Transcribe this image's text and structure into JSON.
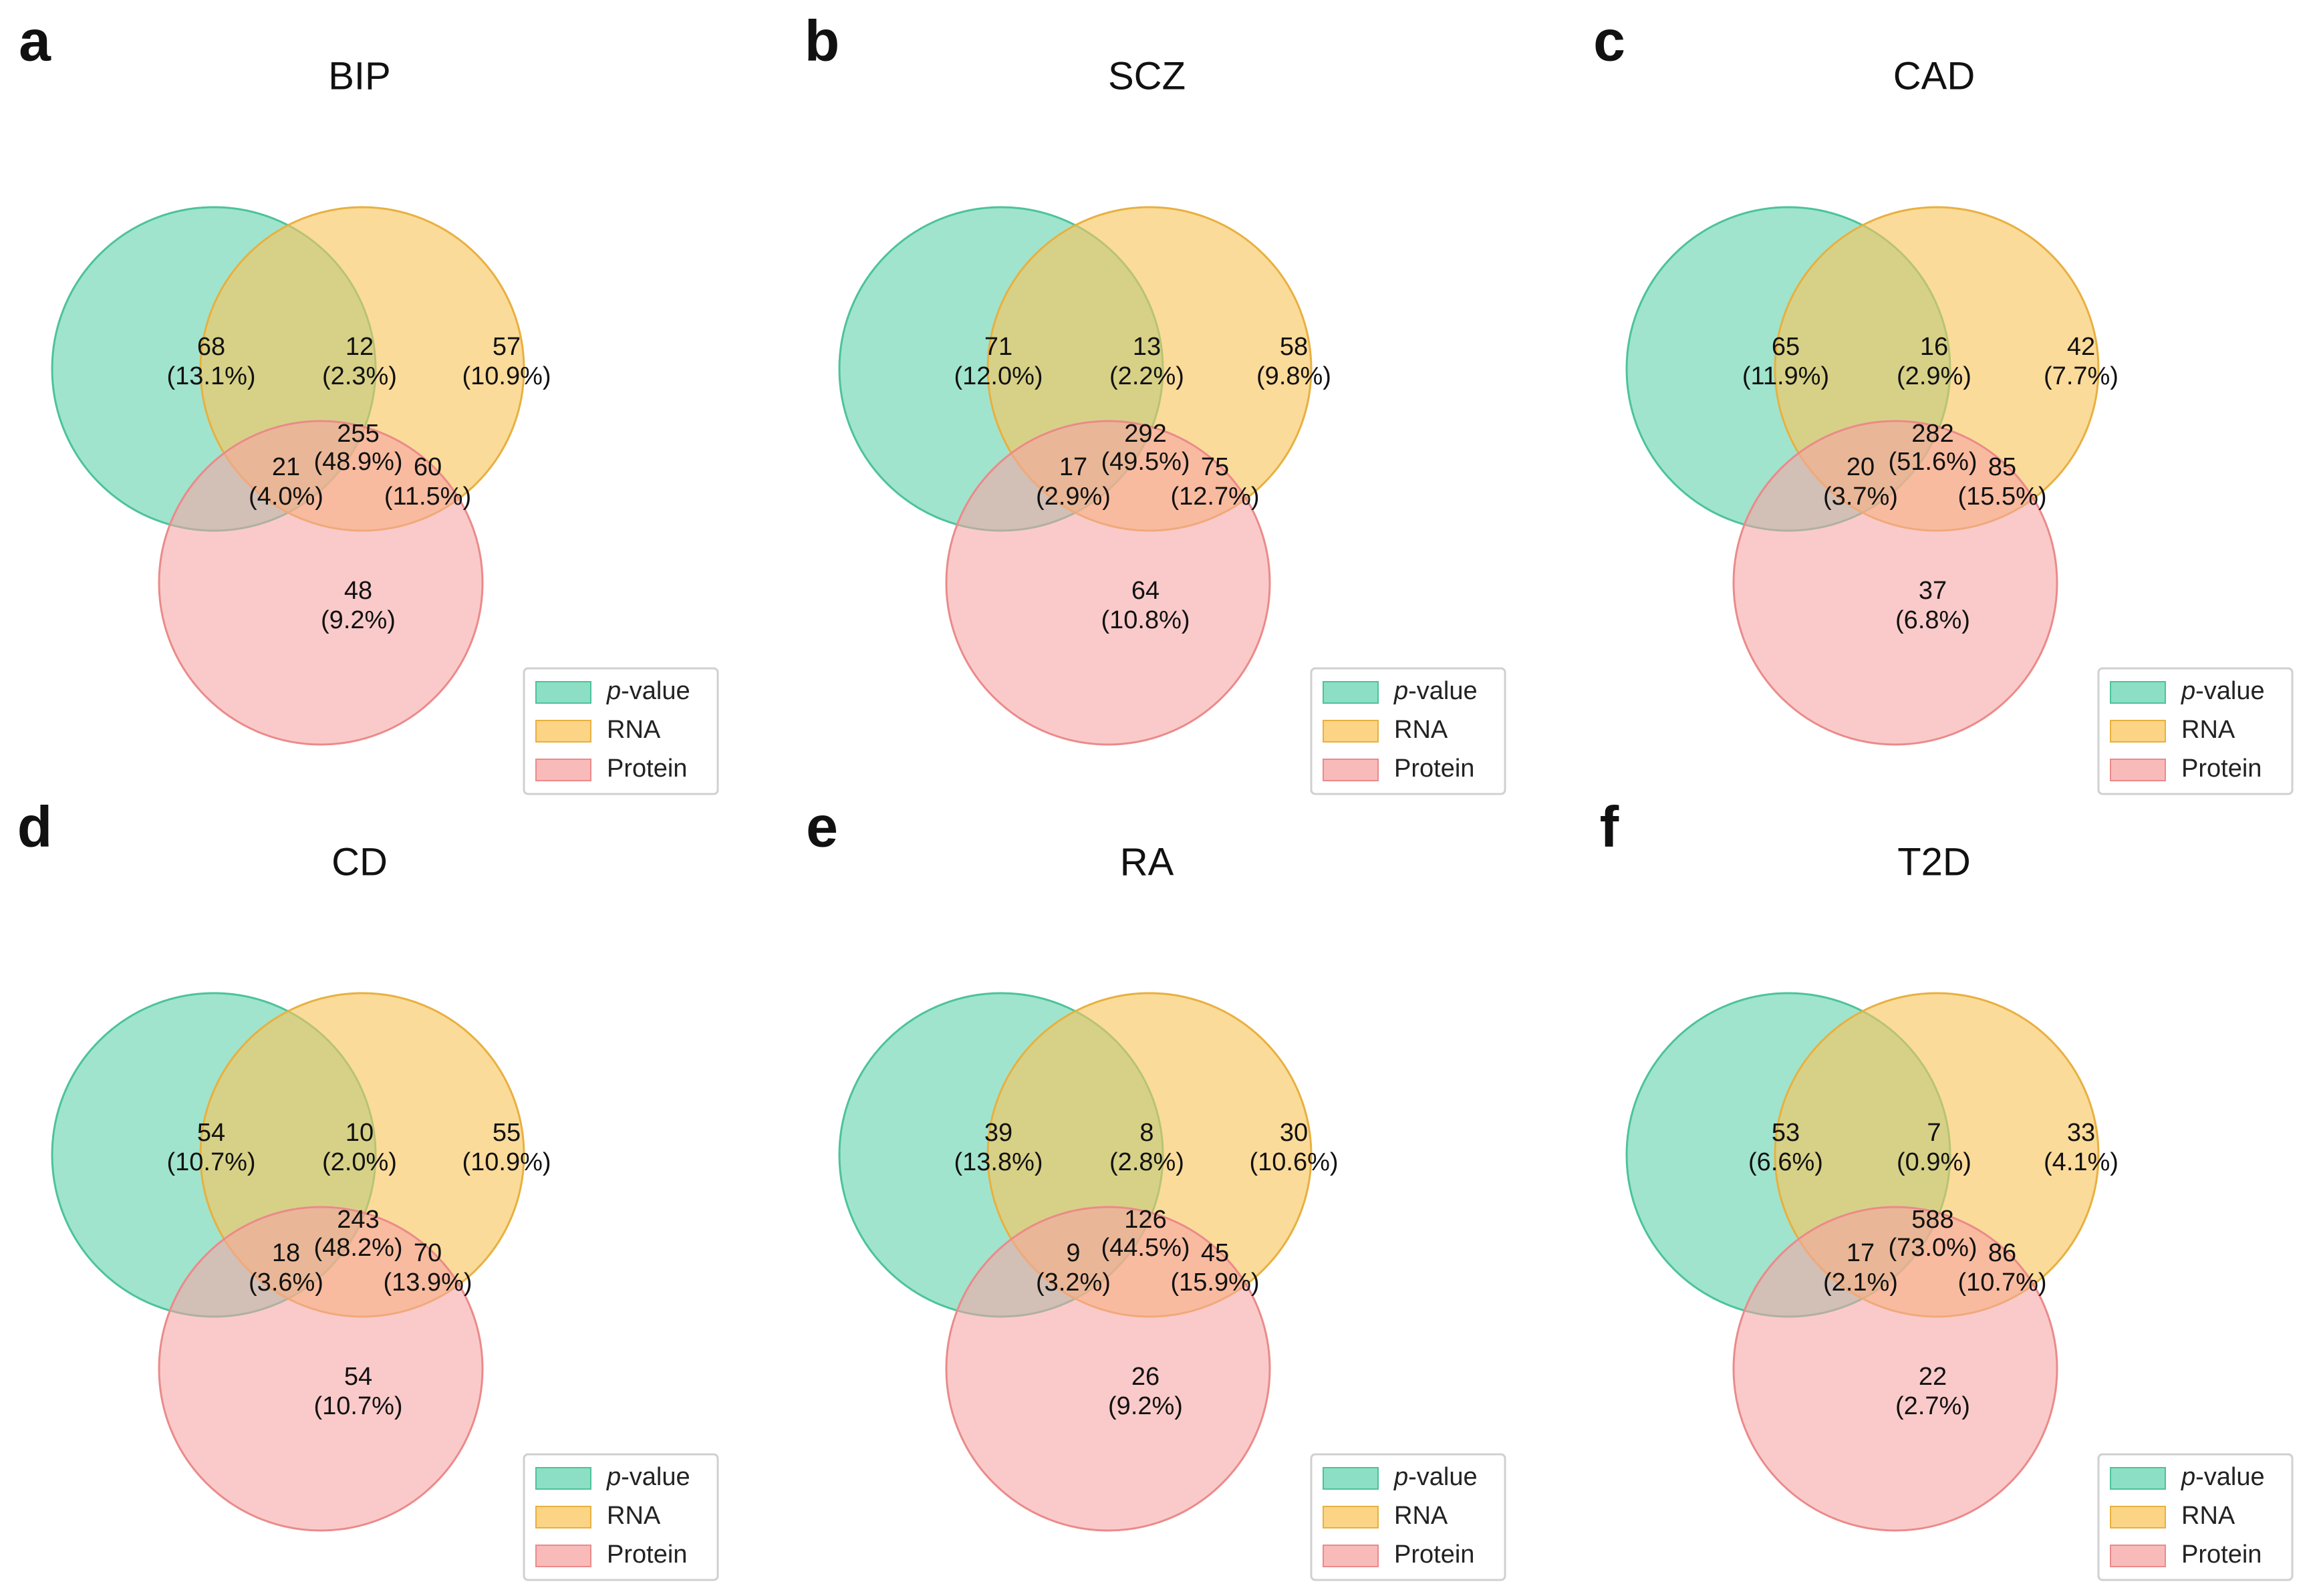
{
  "legend_labels": {
    "pvalue_italic": "p",
    "pvalue_rest": "-value",
    "rna": "RNA",
    "protein": "Protein"
  },
  "colors": {
    "pvalue_fill": "#66d4b0",
    "pvalue_stroke": "#4cc39a",
    "rna_fill": "#f9c55c",
    "rna_stroke": "#e8b040",
    "protein_fill": "#f7a3a3",
    "protein_stroke": "#eb8a8a"
  },
  "panels": [
    {
      "letter": "a",
      "title": "BIP",
      "regions": {
        "p_only": {
          "count": "68",
          "pct": "(13.1%)"
        },
        "rna_only": {
          "count": "57",
          "pct": "(10.9%)"
        },
        "protein_only": {
          "count": "48",
          "pct": "(9.2%)"
        },
        "p_rna": {
          "count": "12",
          "pct": "(2.3%)"
        },
        "p_protein": {
          "count": "21",
          "pct": "(4.0%)"
        },
        "rna_protein": {
          "count": "60",
          "pct": "(11.5%)"
        },
        "all": {
          "count": "255",
          "pct": "(48.9%)"
        }
      }
    },
    {
      "letter": "b",
      "title": "SCZ",
      "regions": {
        "p_only": {
          "count": "71",
          "pct": "(12.0%)"
        },
        "rna_only": {
          "count": "58",
          "pct": "(9.8%)"
        },
        "protein_only": {
          "count": "64",
          "pct": "(10.8%)"
        },
        "p_rna": {
          "count": "13",
          "pct": "(2.2%)"
        },
        "p_protein": {
          "count": "17",
          "pct": "(2.9%)"
        },
        "rna_protein": {
          "count": "75",
          "pct": "(12.7%)"
        },
        "all": {
          "count": "292",
          "pct": "(49.5%)"
        }
      }
    },
    {
      "letter": "c",
      "title": "CAD",
      "regions": {
        "p_only": {
          "count": "65",
          "pct": "(11.9%)"
        },
        "rna_only": {
          "count": "42",
          "pct": "(7.7%)"
        },
        "protein_only": {
          "count": "37",
          "pct": "(6.8%)"
        },
        "p_rna": {
          "count": "16",
          "pct": "(2.9%)"
        },
        "p_protein": {
          "count": "20",
          "pct": "(3.7%)"
        },
        "rna_protein": {
          "count": "85",
          "pct": "(15.5%)"
        },
        "all": {
          "count": "282",
          "pct": "(51.6%)"
        }
      }
    },
    {
      "letter": "d",
      "title": "CD",
      "regions": {
        "p_only": {
          "count": "54",
          "pct": "(10.7%)"
        },
        "rna_only": {
          "count": "55",
          "pct": "(10.9%)"
        },
        "protein_only": {
          "count": "54",
          "pct": "(10.7%)"
        },
        "p_rna": {
          "count": "10",
          "pct": "(2.0%)"
        },
        "p_protein": {
          "count": "18",
          "pct": "(3.6%)"
        },
        "rna_protein": {
          "count": "70",
          "pct": "(13.9%)"
        },
        "all": {
          "count": "243",
          "pct": "(48.2%)"
        }
      }
    },
    {
      "letter": "e",
      "title": "RA",
      "regions": {
        "p_only": {
          "count": "39",
          "pct": "(13.8%)"
        },
        "rna_only": {
          "count": "30",
          "pct": "(10.6%)"
        },
        "protein_only": {
          "count": "26",
          "pct": "(9.2%)"
        },
        "p_rna": {
          "count": "8",
          "pct": "(2.8%)"
        },
        "p_protein": {
          "count": "9",
          "pct": "(3.2%)"
        },
        "rna_protein": {
          "count": "45",
          "pct": "(15.9%)"
        },
        "all": {
          "count": "126",
          "pct": "(44.5%)"
        }
      }
    },
    {
      "letter": "f",
      "title": "T2D",
      "regions": {
        "p_only": {
          "count": "53",
          "pct": "(6.6%)"
        },
        "rna_only": {
          "count": "33",
          "pct": "(4.1%)"
        },
        "protein_only": {
          "count": "22",
          "pct": "(2.7%)"
        },
        "p_rna": {
          "count": "7",
          "pct": "(0.9%)"
        },
        "p_protein": {
          "count": "17",
          "pct": "(2.1%)"
        },
        "rna_protein": {
          "count": "86",
          "pct": "(10.7%)"
        },
        "all": {
          "count": "588",
          "pct": "(73.0%)"
        }
      }
    }
  ]
}
